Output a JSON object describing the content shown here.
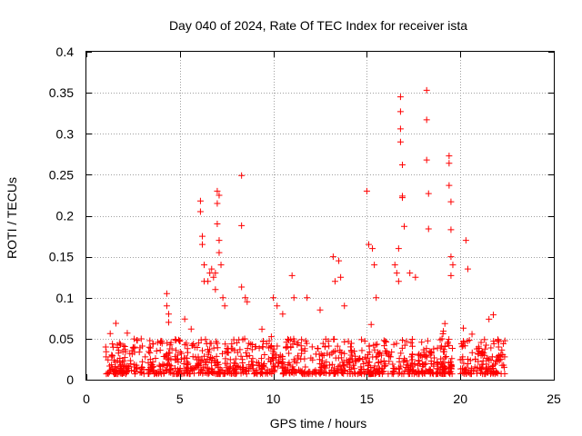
{
  "chart_data": {
    "type": "scatter",
    "title": "Day 040 of 2024, Rate Of TEC Index for receiver ista",
    "xlabel": "GPS time / hours",
    "ylabel": "ROTI / TECUs",
    "xlim": [
      0,
      25
    ],
    "ylim": [
      0,
      0.4
    ],
    "x_ticks": [
      0,
      5,
      10,
      15,
      20,
      25
    ],
    "x_tick_labels": [
      "0",
      "5",
      "10",
      "15",
      "20",
      "25"
    ],
    "y_ticks": [
      0,
      0.05,
      0.1,
      0.15,
      0.2,
      0.25,
      0.3,
      0.35,
      0.4
    ],
    "y_tick_labels": [
      "0",
      "0.05",
      "0.1",
      "0.15",
      "0.2",
      "0.25",
      "0.3",
      "0.35",
      "0.4"
    ],
    "grid": true,
    "marker": "+",
    "color": "#ff0000",
    "series": [
      {
        "name": "ROTI",
        "x": [
          4.3,
          4.3,
          4.4,
          4.4,
          6.1,
          6.1,
          6.2,
          6.2,
          6.3,
          6.3,
          6.5,
          6.6,
          6.7,
          6.8,
          6.9,
          6.9,
          7.0,
          7.0,
          7.0,
          7.1,
          7.1,
          7.1,
          7.2,
          7.3,
          7.4,
          8.3,
          8.3,
          8.3,
          8.5,
          8.6,
          10.0,
          10.2,
          10.5,
          11.0,
          11.1,
          11.8,
          12.5,
          13.2,
          13.3,
          13.5,
          13.6,
          13.8,
          15.0,
          15.1,
          15.3,
          15.4,
          15.5,
          16.5,
          16.6,
          16.7,
          16.7,
          16.8,
          16.8,
          16.8,
          16.8,
          16.9,
          16.9,
          16.9,
          17.0,
          17.3,
          17.6,
          18.2,
          18.2,
          18.2,
          18.3,
          18.3,
          19.4,
          19.4,
          19.4,
          19.5,
          19.5,
          19.5,
          19.5,
          19.6,
          20.3,
          20.4
        ],
        "y": [
          0.105,
          0.09,
          0.08,
          0.07,
          0.218,
          0.205,
          0.175,
          0.165,
          0.14,
          0.12,
          0.12,
          0.13,
          0.135,
          0.125,
          0.13,
          0.11,
          0.23,
          0.215,
          0.19,
          0.225,
          0.17,
          0.155,
          0.14,
          0.1,
          0.09,
          0.249,
          0.188,
          0.113,
          0.1,
          0.095,
          0.1,
          0.09,
          0.08,
          0.127,
          0.1,
          0.1,
          0.085,
          0.15,
          0.12,
          0.145,
          0.125,
          0.09,
          0.23,
          0.165,
          0.16,
          0.14,
          0.1,
          0.14,
          0.13,
          0.16,
          0.12,
          0.345,
          0.327,
          0.306,
          0.29,
          0.262,
          0.224,
          0.222,
          0.187,
          0.13,
          0.125,
          0.353,
          0.317,
          0.268,
          0.227,
          0.184,
          0.273,
          0.264,
          0.237,
          0.217,
          0.183,
          0.15,
          0.127,
          0.14,
          0.17,
          0.135
        ],
        "background_ranges_hours": [
          [
            1.0,
            19.6
          ],
          [
            20.0,
            22.4
          ]
        ],
        "background_level_range": [
          0.007,
          0.05
        ]
      }
    ]
  }
}
